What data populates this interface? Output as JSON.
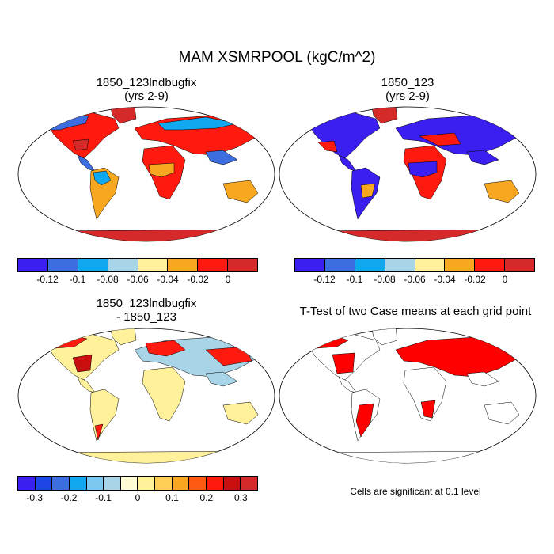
{
  "title": "MAM XSMRPOOL (kgC/m^2)",
  "panels": [
    {
      "title_line1": "1850_123lndbugfix",
      "title_line2": "(yrs 2-9)"
    },
    {
      "title_line1": "1850_123",
      "title_line2": "(yrs 2-9)"
    },
    {
      "title_line1": "1850_123lndbugfix",
      "title_line2": "- 1850_123"
    },
    {
      "title_line1": "T-Test of two Case means at each grid point",
      "title_line2": ""
    }
  ],
  "colorbar_top": {
    "colors": [
      "#3a1ff0",
      "#3d6ee0",
      "#12a8f0",
      "#a8d4e8",
      "#fff19a",
      "#f8a820",
      "#ff1a0f",
      "#d62a2a"
    ],
    "tick_labels": [
      "-0.12",
      "-0.1",
      "-0.08",
      "-0.06",
      "-0.04",
      "-0.02",
      "0"
    ]
  },
  "colorbar_bottom": {
    "colors": [
      "#3a1ff0",
      "#1f45e6",
      "#3d6ee0",
      "#12a8f0",
      "#7dc8ee",
      "#a8d4e8",
      "#fffbd2",
      "#fff19a",
      "#ffd055",
      "#f8a820",
      "#ff5a14",
      "#ff1a0f",
      "#c80e0e",
      "#d62a2a"
    ],
    "tick_labels": [
      "-0.3",
      "-0.2",
      "-0.1",
      "0",
      "0.1",
      "0.2",
      "0.3"
    ]
  },
  "note": "Cells are significant at 0.1 level"
}
